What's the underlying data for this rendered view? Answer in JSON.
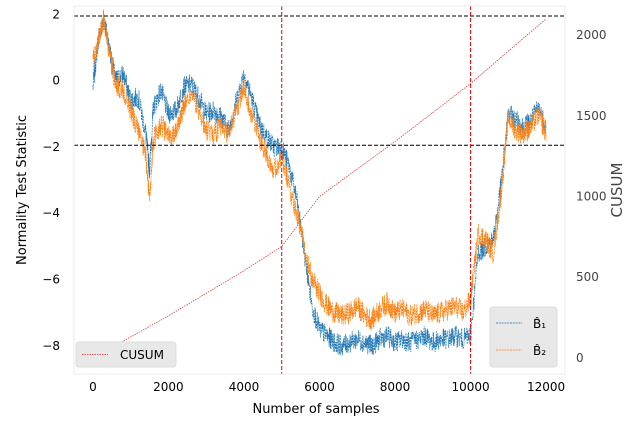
{
  "chart_data": {
    "type": "line",
    "xlabel": "Number of samples",
    "ylabel_left": "Normality Test Statistic",
    "ylabel_right": "CUSUM",
    "xlim": [
      -500,
      12500
    ],
    "ylim_left": [
      -8.85,
      2.25
    ],
    "ylim_right": [
      -100,
      2180
    ],
    "x_ticks": [
      0,
      2000,
      4000,
      6000,
      8000,
      10000,
      12000
    ],
    "x_tick_labels": [
      "0",
      "2000",
      "4000",
      "6000",
      "8000",
      "10000",
      "12000"
    ],
    "y_left_ticks": [
      2,
      0,
      -2,
      -4,
      -6,
      -8
    ],
    "y_left_tick_labels": [
      "2",
      "0",
      "−2",
      "−4",
      "−6",
      "−8"
    ],
    "y_right_ticks": [
      0,
      500,
      1000,
      1500,
      2000
    ],
    "y_right_tick_labels": [
      "0",
      "500",
      "1000",
      "1500",
      "2000"
    ],
    "hlines": [
      1.95,
      -1.95
    ],
    "vlines": [
      5000,
      10000
    ],
    "grid": false,
    "legend_left": {
      "placement": "lower-left",
      "entries": [
        "CUSUM"
      ]
    },
    "legend_right": {
      "placement": "lower-right",
      "entries": [
        "B̂₁",
        "B̂₂"
      ]
    },
    "series": [
      {
        "name": "B̂₁",
        "axis": "left",
        "color": "#1f77b4",
        "x": [
          0,
          150,
          300,
          450,
          600,
          800,
          1000,
          1200,
          1400,
          1500,
          1600,
          1800,
          2000,
          2200,
          2400,
          2600,
          2800,
          3000,
          3200,
          3400,
          3600,
          3800,
          4000,
          4200,
          4400,
          4600,
          4800,
          5000,
          5200,
          5400,
          5600,
          5800,
          6000,
          6200,
          6400,
          6600,
          6800,
          7000,
          7200,
          7400,
          7600,
          7800,
          8000,
          8200,
          8400,
          8600,
          8800,
          9000,
          9200,
          9400,
          9600,
          9800,
          10000,
          10200,
          10400,
          10600,
          10800,
          11000,
          11200,
          11400,
          11600,
          11800,
          12000
        ],
        "values": [
          -0.2,
          1.3,
          1.8,
          0.9,
          0.0,
          0.2,
          -0.6,
          -0.5,
          -1.6,
          -2.7,
          -0.8,
          -0.3,
          -1.0,
          -0.9,
          -0.2,
          -0.1,
          -0.5,
          -1.0,
          -0.9,
          -1.1,
          -1.5,
          -0.6,
          0.2,
          -0.5,
          -1.3,
          -1.7,
          -2.0,
          -2.0,
          -2.6,
          -3.6,
          -5.2,
          -6.8,
          -7.5,
          -7.7,
          -7.9,
          -8.0,
          -7.9,
          -7.8,
          -7.9,
          -8.0,
          -7.8,
          -7.7,
          -7.9,
          -7.8,
          -7.9,
          -7.8,
          -7.7,
          -7.9,
          -7.8,
          -7.8,
          -7.7,
          -7.8,
          -7.7,
          -5.2,
          -5.0,
          -4.8,
          -3.2,
          -1.0,
          -1.2,
          -1.4,
          -1.2,
          -0.8,
          -1.4
        ]
      },
      {
        "name": "B̂₂",
        "axis": "left",
        "color": "#ff7f0e",
        "x": [
          0,
          150,
          300,
          450,
          600,
          800,
          1000,
          1200,
          1400,
          1500,
          1600,
          1800,
          2000,
          2200,
          2400,
          2600,
          2800,
          3000,
          3200,
          3400,
          3600,
          3800,
          4000,
          4200,
          4400,
          4600,
          4800,
          5000,
          5200,
          5400,
          5600,
          5800,
          6000,
          6200,
          6400,
          6600,
          6800,
          7000,
          7200,
          7400,
          7600,
          7800,
          8000,
          8200,
          8400,
          8600,
          8800,
          9000,
          9200,
          9400,
          9600,
          9800,
          10000,
          10200,
          10400,
          10600,
          10800,
          11000,
          11200,
          11400,
          11600,
          11800,
          12000
        ],
        "values": [
          0.6,
          1.2,
          1.9,
          0.7,
          -0.1,
          -0.3,
          -0.9,
          -1.5,
          -2.3,
          -3.6,
          -1.8,
          -1.3,
          -1.7,
          -1.5,
          -0.8,
          -0.4,
          -0.9,
          -1.5,
          -1.6,
          -1.4,
          -1.6,
          -0.9,
          -0.2,
          -1.0,
          -1.7,
          -2.2,
          -2.7,
          -2.3,
          -3.2,
          -4.0,
          -5.0,
          -6.0,
          -6.4,
          -6.8,
          -7.0,
          -7.1,
          -7.0,
          -6.8,
          -7.1,
          -7.2,
          -6.9,
          -6.7,
          -7.0,
          -6.9,
          -7.1,
          -7.0,
          -6.9,
          -7.1,
          -7.0,
          -6.9,
          -6.8,
          -7.0,
          -6.6,
          -4.6,
          -4.8,
          -5.2,
          -3.5,
          -1.1,
          -1.5,
          -1.6,
          -1.4,
          -1.0,
          -1.6
        ]
      },
      {
        "name": "CUSUM",
        "axis": "right",
        "color": "#d62728",
        "x": [
          0,
          2000,
          4000,
          5000,
          6000,
          8000,
          10000,
          12000
        ],
        "values": [
          0,
          260,
          540,
          690,
          1000,
          1340,
          1700,
          2100
        ]
      }
    ]
  }
}
